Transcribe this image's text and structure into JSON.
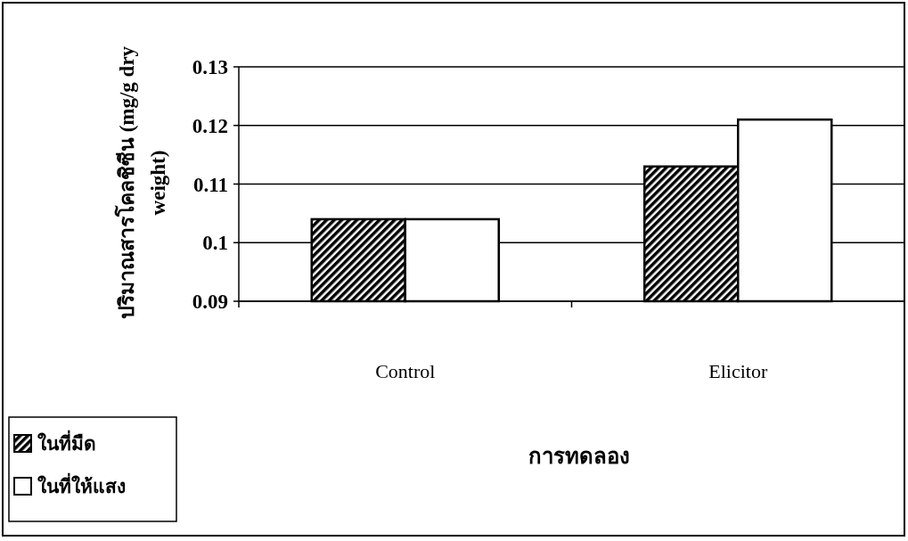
{
  "chart_data": {
    "type": "bar",
    "xlabel": "การทดลอง",
    "ylabel": "ปริมาณสารโคลชิซีน (mg/g dry weight)",
    "categories": [
      "Control",
      "Elicitor"
    ],
    "series": [
      {
        "name": "ในที่มืด",
        "color": "#000000",
        "values": [
          0.104,
          0.113
        ]
      },
      {
        "name": "ในที่ให้แสง",
        "color": "#ffffff",
        "values": [
          0.104,
          0.121
        ]
      }
    ],
    "ylim": [
      0.09,
      0.13
    ],
    "yticks": [
      0.09,
      0.1,
      0.11,
      0.12,
      0.13
    ],
    "grid": "y",
    "legend": "bottom left"
  }
}
